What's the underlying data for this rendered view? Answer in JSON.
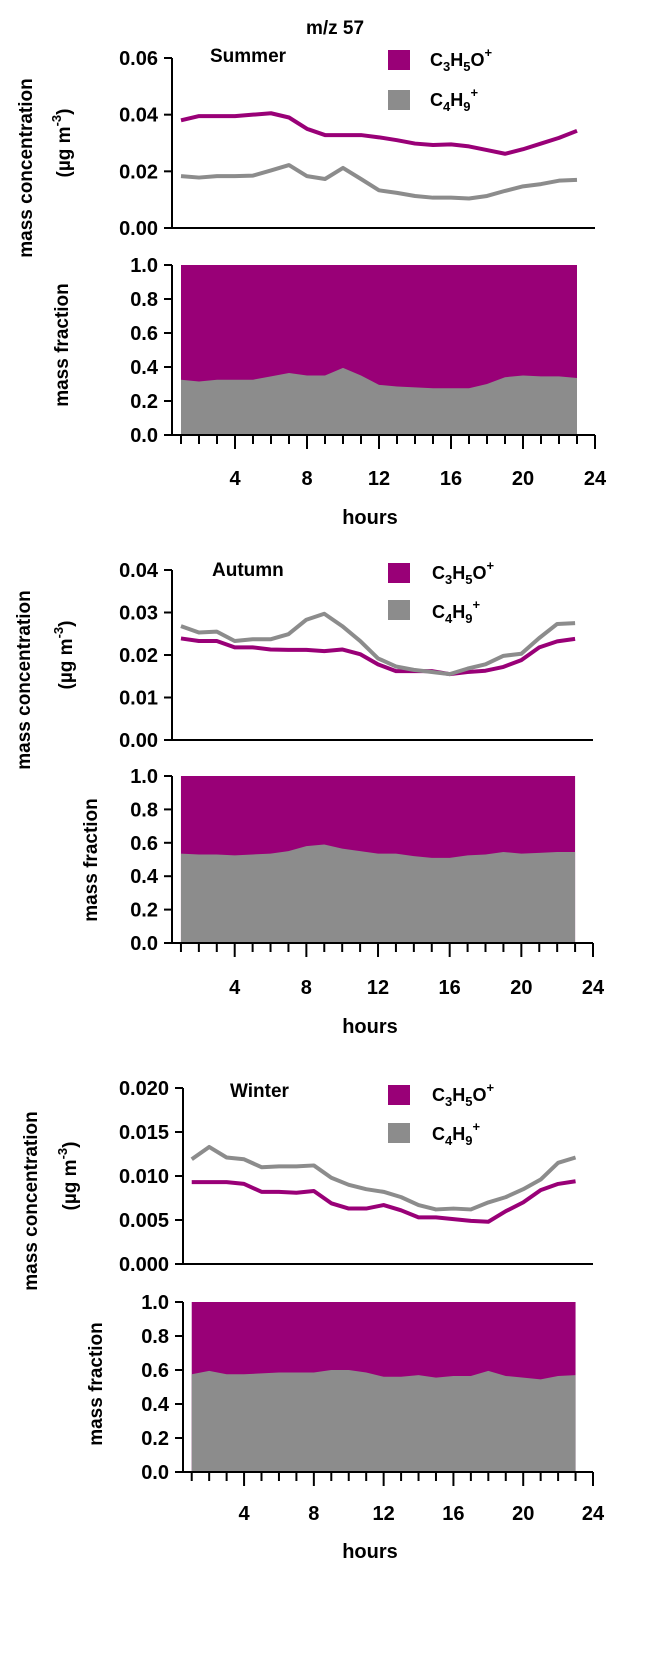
{
  "figure": {
    "title": "m/z 57",
    "conc_ylabel": "mass concentration",
    "conc_unit_prefix": "(µg m",
    "conc_unit_exp": "-3",
    "conc_unit_suffix": ")",
    "frac_ylabel": "mass fraction",
    "xlabel": "hours"
  },
  "legend": {
    "series_a": {
      "main": "C",
      "s1": "3",
      "m2": "H",
      "s2": "5",
      "m3": "O",
      "sup": "+"
    },
    "series_b": {
      "main": "C",
      "s1": "4",
      "m2": "H",
      "s2": "9",
      "sup": "+"
    }
  },
  "colors": {
    "c3h5o": "#990077",
    "c4h9": "#8c8c8c"
  },
  "chart_data": [
    {
      "type": "line",
      "season": "Summer",
      "x": [
        1,
        2,
        3,
        4,
        5,
        6,
        7,
        8,
        9,
        10,
        11,
        12,
        13,
        14,
        15,
        16,
        17,
        18,
        19,
        20,
        21,
        22,
        23
      ],
      "series": [
        {
          "name": "C3H5O+",
          "values": [
            0.038,
            0.0395,
            0.0395,
            0.0395,
            0.04,
            0.0405,
            0.039,
            0.035,
            0.0328,
            0.0328,
            0.0328,
            0.032,
            0.031,
            0.0298,
            0.0293,
            0.0295,
            0.0288,
            0.0275,
            0.0262,
            0.0278,
            0.0298,
            0.0318,
            0.0343
          ]
        },
        {
          "name": "C4H9+",
          "values": [
            0.0183,
            0.0178,
            0.0183,
            0.0183,
            0.0185,
            0.0203,
            0.0222,
            0.0183,
            0.0173,
            0.0212,
            0.0173,
            0.0133,
            0.0124,
            0.0113,
            0.0107,
            0.0107,
            0.0104,
            0.0113,
            0.0131,
            0.0147,
            0.0155,
            0.0167,
            0.017
          ]
        }
      ],
      "ylim": [
        0,
        0.06
      ],
      "yticks": [
        "0.00",
        "0.02",
        "0.04",
        "0.06"
      ]
    },
    {
      "type": "area",
      "season": "Summer",
      "x": [
        1,
        2,
        3,
        4,
        5,
        6,
        7,
        8,
        9,
        10,
        11,
        12,
        13,
        14,
        15,
        16,
        17,
        18,
        19,
        20,
        21,
        22,
        23
      ],
      "series": [
        {
          "name": "C4H9+",
          "values": [
            0.325,
            0.315,
            0.325,
            0.325,
            0.325,
            0.345,
            0.365,
            0.35,
            0.35,
            0.395,
            0.35,
            0.295,
            0.285,
            0.28,
            0.275,
            0.275,
            0.275,
            0.3,
            0.34,
            0.35,
            0.345,
            0.345,
            0.335
          ]
        },
        {
          "name": "C3H5O+",
          "values_top": 1.0
        }
      ],
      "ylim": [
        0,
        1.0
      ],
      "yticks": [
        "0.0",
        "0.2",
        "0.4",
        "0.6",
        "0.8",
        "1.0"
      ],
      "xticks": [
        "4",
        "8",
        "12",
        "16",
        "20",
        "24"
      ]
    },
    {
      "type": "line",
      "season": "Autumn",
      "x": [
        1,
        2,
        3,
        4,
        5,
        6,
        7,
        8,
        9,
        10,
        11,
        12,
        13,
        14,
        15,
        16,
        17,
        18,
        19,
        20,
        21,
        22,
        23
      ],
      "series": [
        {
          "name": "C3H5O+",
          "values": [
            0.0239,
            0.0233,
            0.0233,
            0.0218,
            0.0218,
            0.0213,
            0.0212,
            0.0212,
            0.0209,
            0.0213,
            0.0202,
            0.0178,
            0.0162,
            0.0162,
            0.0162,
            0.0155,
            0.016,
            0.0163,
            0.0172,
            0.0188,
            0.0218,
            0.0232,
            0.0238
          ]
        },
        {
          "name": "C4H9+",
          "values": [
            0.0268,
            0.0253,
            0.0255,
            0.0233,
            0.0237,
            0.0237,
            0.0249,
            0.0283,
            0.0297,
            0.0268,
            0.0233,
            0.0192,
            0.0173,
            0.0165,
            0.016,
            0.0155,
            0.0168,
            0.0178,
            0.0198,
            0.0203,
            0.024,
            0.0273,
            0.0275
          ]
        }
      ],
      "ylim": [
        0,
        0.04
      ],
      "yticks": [
        "0.00",
        "0.01",
        "0.02",
        "0.03",
        "0.04"
      ]
    },
    {
      "type": "area",
      "season": "Autumn",
      "x": [
        1,
        2,
        3,
        4,
        5,
        6,
        7,
        8,
        9,
        10,
        11,
        12,
        13,
        14,
        15,
        16,
        17,
        18,
        19,
        20,
        21,
        22,
        23
      ],
      "series": [
        {
          "name": "C4H9+",
          "values": [
            0.535,
            0.53,
            0.53,
            0.525,
            0.53,
            0.535,
            0.55,
            0.58,
            0.59,
            0.565,
            0.55,
            0.535,
            0.535,
            0.52,
            0.51,
            0.51,
            0.525,
            0.53,
            0.545,
            0.535,
            0.54,
            0.545,
            0.545
          ]
        },
        {
          "name": "C3H5O+",
          "values_top": 1.0
        }
      ],
      "ylim": [
        0,
        1.0
      ],
      "yticks": [
        "0.0",
        "0.2",
        "0.4",
        "0.6",
        "0.8",
        "1.0"
      ],
      "xticks": [
        "4",
        "8",
        "12",
        "16",
        "20",
        "24"
      ]
    },
    {
      "type": "line",
      "season": "Winter",
      "x": [
        1,
        2,
        3,
        4,
        5,
        6,
        7,
        8,
        9,
        10,
        11,
        12,
        13,
        14,
        15,
        16,
        17,
        18,
        19,
        20,
        21,
        22,
        23
      ],
      "series": [
        {
          "name": "C3H5O+",
          "values": [
            0.0093,
            0.0093,
            0.0093,
            0.0091,
            0.0082,
            0.0082,
            0.0081,
            0.0083,
            0.0069,
            0.0063,
            0.0063,
            0.0067,
            0.0061,
            0.0053,
            0.0053,
            0.0051,
            0.0049,
            0.0048,
            0.006,
            0.007,
            0.0084,
            0.0091,
            0.0094
          ]
        },
        {
          "name": "C4H9+",
          "values": [
            0.0119,
            0.0133,
            0.0121,
            0.0119,
            0.011,
            0.0111,
            0.0111,
            0.0112,
            0.0098,
            0.009,
            0.0085,
            0.0082,
            0.0076,
            0.0067,
            0.0062,
            0.0063,
            0.0062,
            0.007,
            0.0076,
            0.0085,
            0.0096,
            0.0115,
            0.0121
          ]
        }
      ],
      "ylim": [
        0,
        0.02
      ],
      "yticks": [
        "0.000",
        "0.005",
        "0.010",
        "0.015",
        "0.020"
      ]
    },
    {
      "type": "area",
      "season": "Winter",
      "x": [
        1,
        2,
        3,
        4,
        5,
        6,
        7,
        8,
        9,
        10,
        11,
        12,
        13,
        14,
        15,
        16,
        17,
        18,
        19,
        20,
        21,
        22,
        23
      ],
      "series": [
        {
          "name": "C4H9+",
          "values": [
            0.575,
            0.595,
            0.575,
            0.575,
            0.58,
            0.585,
            0.585,
            0.585,
            0.6,
            0.6,
            0.585,
            0.56,
            0.56,
            0.57,
            0.555,
            0.565,
            0.565,
            0.595,
            0.565,
            0.555,
            0.545,
            0.565,
            0.57
          ]
        },
        {
          "name": "C3H5O+",
          "values_top": 1.0
        }
      ],
      "ylim": [
        0,
        1.0
      ],
      "yticks": [
        "0.0",
        "0.2",
        "0.4",
        "0.6",
        "0.8",
        "1.0"
      ],
      "xticks": [
        "4",
        "8",
        "12",
        "16",
        "20",
        "24"
      ]
    }
  ]
}
